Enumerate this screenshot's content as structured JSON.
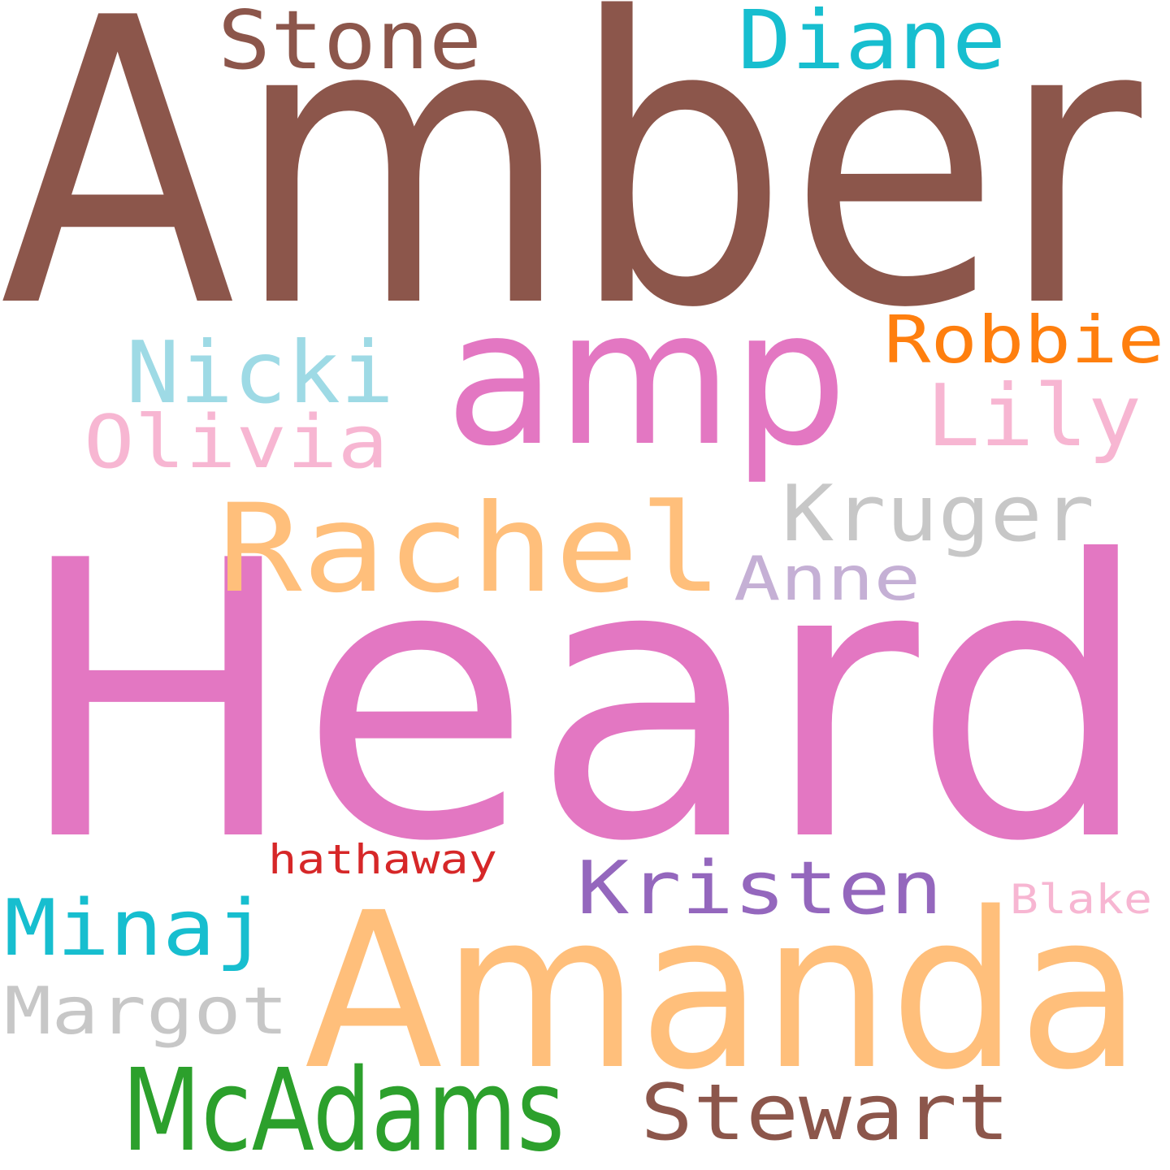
{
  "words": [
    {
      "text": "Amber",
      "color": "#8c564b"
    },
    {
      "text": "Heard",
      "color": "#e377c2"
    },
    {
      "text": "amp",
      "color": "#e377c2"
    },
    {
      "text": "Amanda",
      "color": "#ffbf7b"
    },
    {
      "text": "Rachel",
      "color": "#ffbf7b"
    },
    {
      "text": "McAdams",
      "color": "#2ca02c"
    },
    {
      "text": "Stone",
      "color": "#8c564b"
    },
    {
      "text": "Diane",
      "color": "#17becf"
    },
    {
      "text": "Nicki",
      "color": "#9edae5"
    },
    {
      "text": "Robbie",
      "color": "#ff7f0e"
    },
    {
      "text": "Lily",
      "color": "#f7b6d2"
    },
    {
      "text": "Olivia",
      "color": "#f7b6d2"
    },
    {
      "text": "Kruger",
      "color": "#c7c7c7"
    },
    {
      "text": "Anne",
      "color": "#c5b0d5"
    },
    {
      "text": "hathaway",
      "color": "#d62728"
    },
    {
      "text": "Kristen",
      "color": "#9467bd"
    },
    {
      "text": "Minaj",
      "color": "#17becf"
    },
    {
      "text": "Blake",
      "color": "#f7b6d2"
    },
    {
      "text": "Margot",
      "color": "#c7c7c7"
    },
    {
      "text": "Stewart",
      "color": "#8c564b"
    }
  ]
}
